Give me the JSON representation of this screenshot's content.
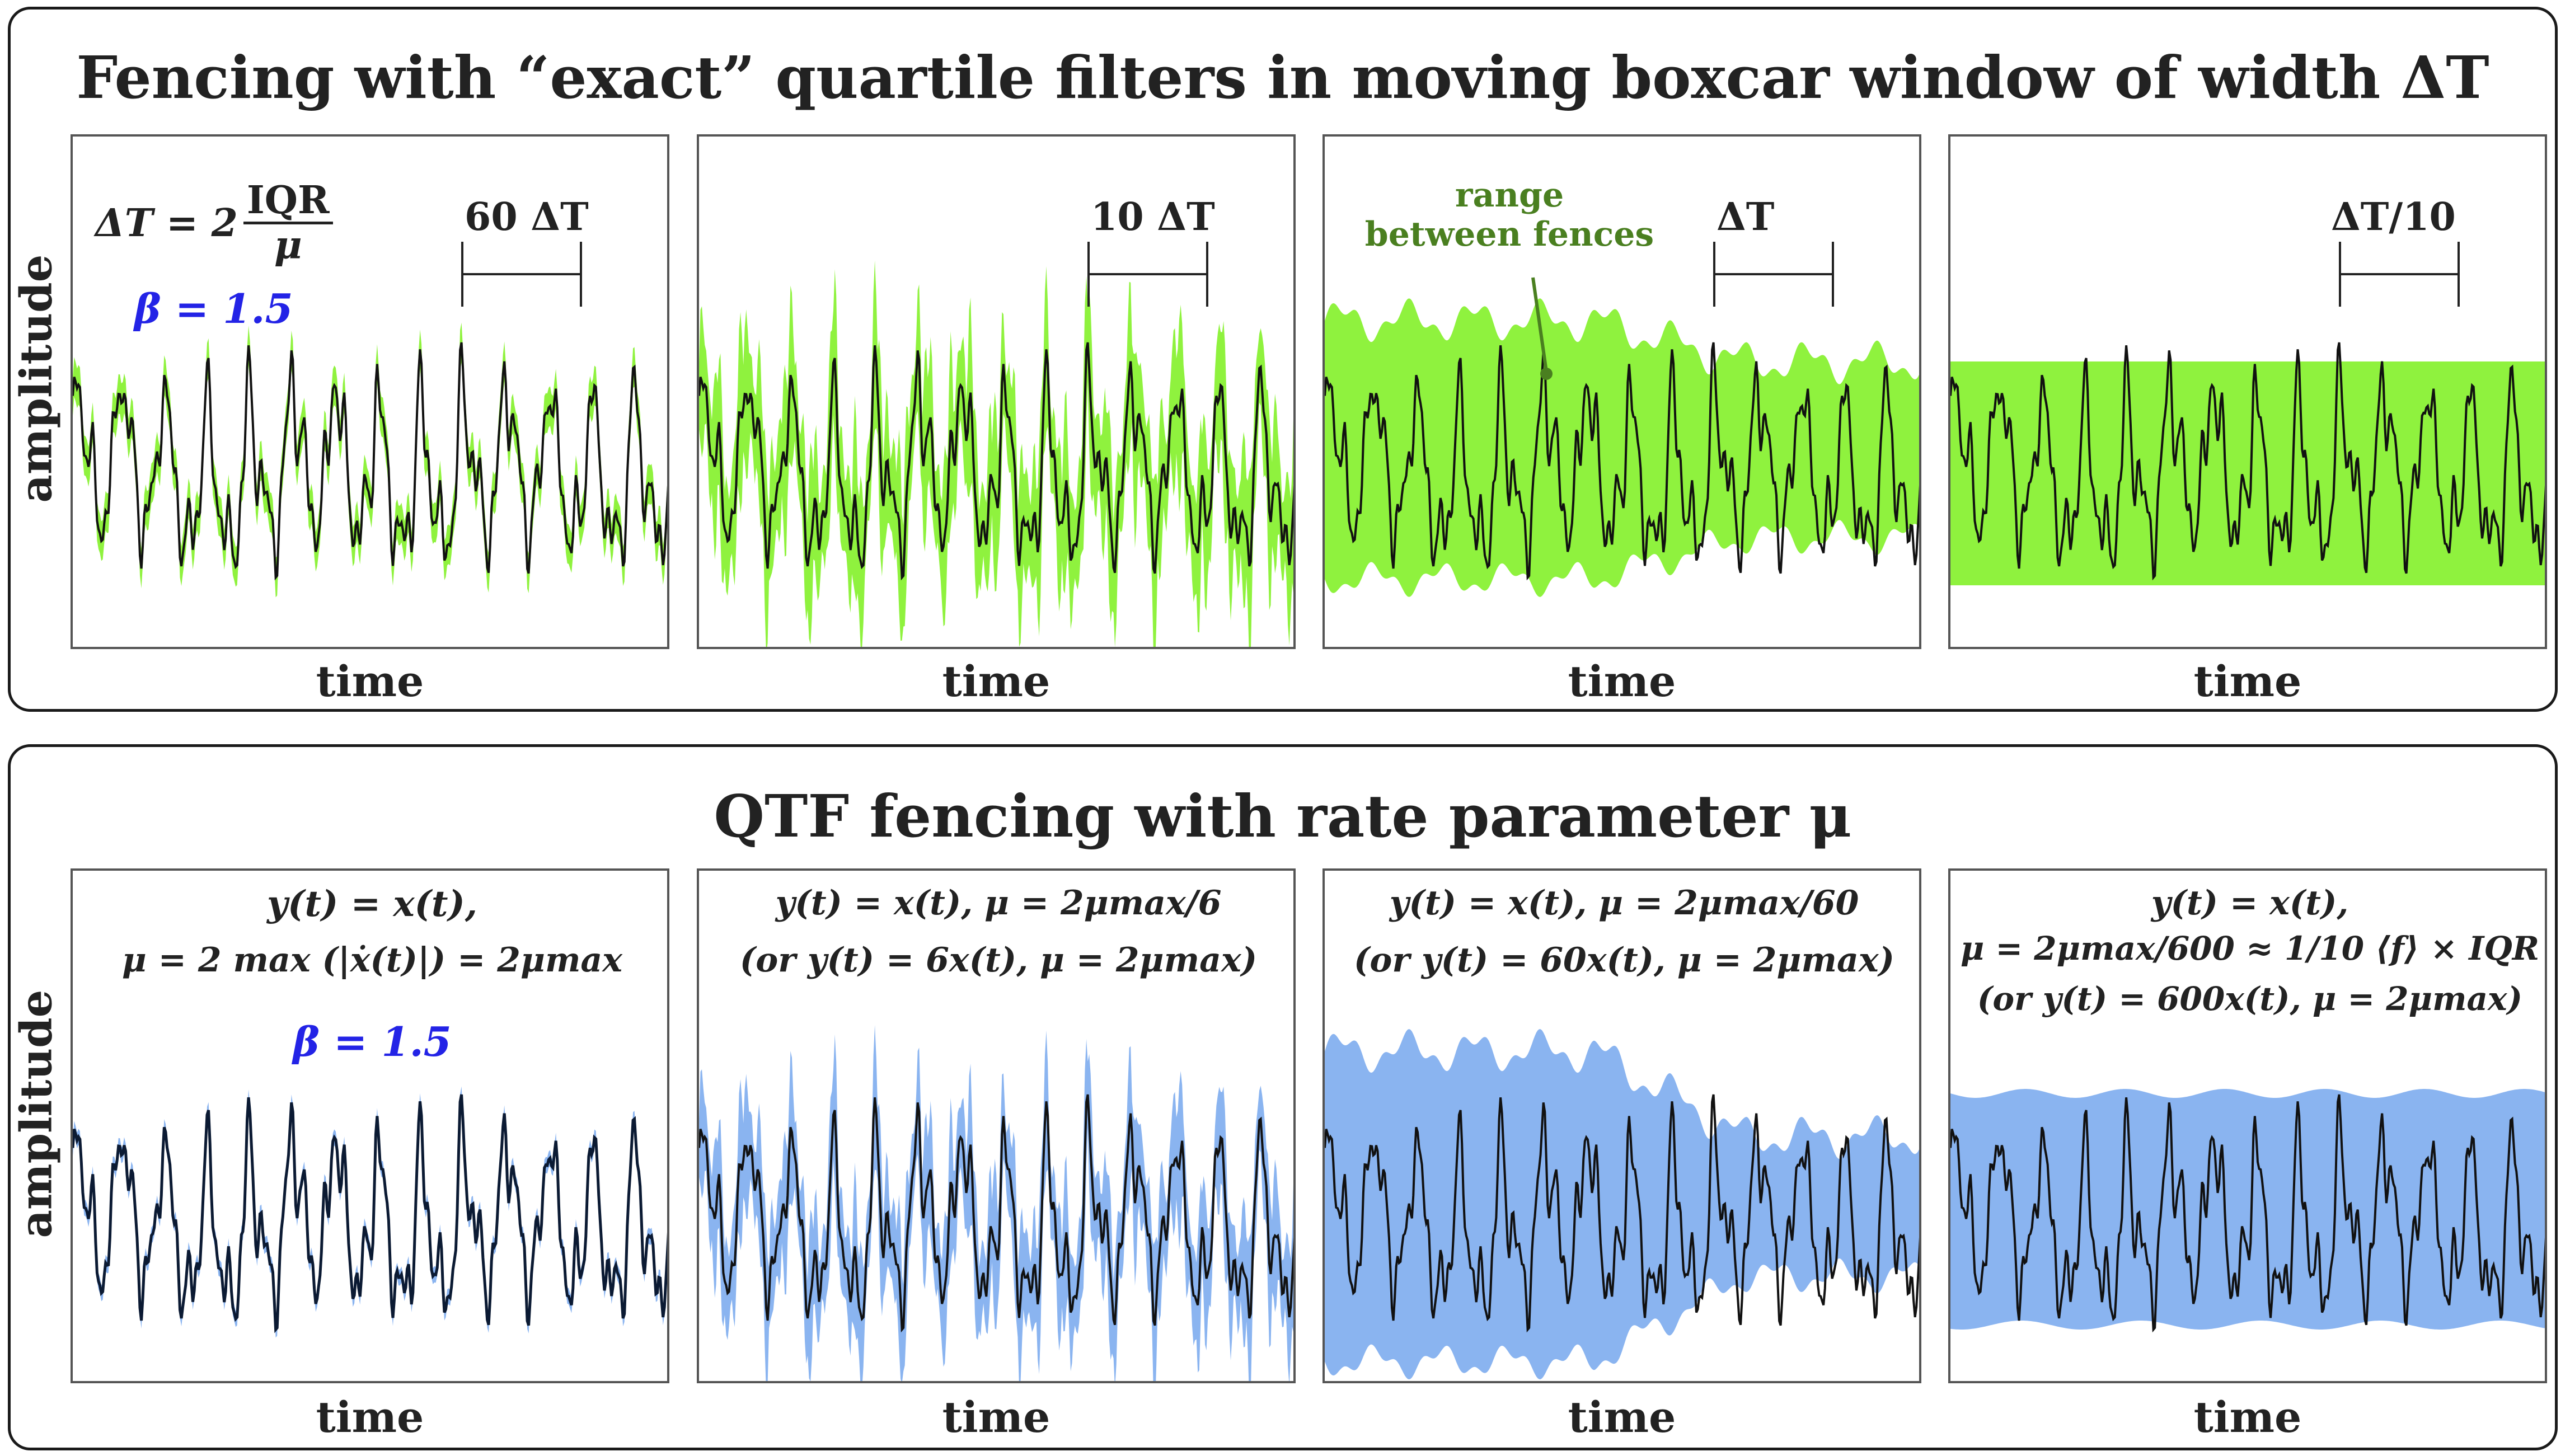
{
  "top": {
    "title": "Fencing with “exact” quartile filters in moving boxcar window of width ΔT",
    "ylabel": "amplitude",
    "xlabel": "time",
    "panels": [
      {
        "scale_label": "60 ΔT",
        "formula_lhs": "ΔT = 2",
        "formula_num": "IQR",
        "formula_den": "μ",
        "beta": "β = 1.5"
      },
      {
        "scale_label": "10 ΔT"
      },
      {
        "scale_label": "ΔT",
        "annotation_line1": "range",
        "annotation_line2": "between fences"
      },
      {
        "scale_label": "ΔT/10"
      }
    ]
  },
  "bottom": {
    "title": "QTF fencing with rate parameter μ",
    "ylabel": "amplitude",
    "xlabel": "time",
    "panels": [
      {
        "line1": "y(t) = x(t),",
        "line2": "μ = 2 max (|ẋ(t)|) = 2μmax",
        "beta": "β = 1.5"
      },
      {
        "line1": "y(t) = x(t), μ = 2μmax/6",
        "line2": "(or y(t) = 6x(t), μ = 2μmax)"
      },
      {
        "line1": "y(t) = x(t), μ = 2μmax/60",
        "line2": "(or y(t) = 60x(t), μ = 2μmax)"
      },
      {
        "line1": "y(t) = x(t),",
        "line2": "μ = 2μmax/600 ≈ 1/10 ⟨f⟩ × IQR",
        "line3": "(or y(t) = 600x(t), μ = 2μmax)"
      }
    ]
  },
  "colors": {
    "fence_green": "#8ff23e",
    "fence_blue": "#8ab4f0",
    "signal": "#111111",
    "signal_bottom": "#0b1a33",
    "beta_blue": "#2323e6",
    "annotation_green": "#4a7f20"
  }
}
